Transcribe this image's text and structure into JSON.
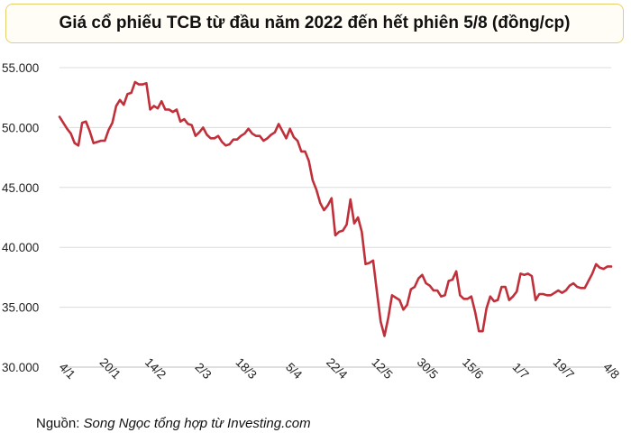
{
  "chart_data": {
    "type": "line",
    "title": "Giá cổ phiếu TCB từ đầu năm 2022 đến hết phiên 5/8 (đồng/cp)",
    "xlabel": "",
    "ylabel": "",
    "ylim": [
      30000,
      55000
    ],
    "y_ticks": [
      30000,
      35000,
      40000,
      45000,
      50000,
      55000
    ],
    "y_tick_labels": [
      "30.000",
      "35.000",
      "40.000",
      "45.000",
      "50.000",
      "55.000"
    ],
    "x_tick_labels": [
      "4/1",
      "20/1",
      "14/2",
      "2/3",
      "18/3",
      "5/4",
      "22/4",
      "12/5",
      "30/5",
      "15/6",
      "1/7",
      "19/7",
      "4/8"
    ],
    "x_tick_index": [
      0,
      12,
      24,
      36,
      48,
      60,
      72,
      84,
      96,
      108,
      120,
      132,
      144
    ],
    "grid": true,
    "line_color": "#c0303a",
    "series": [
      {
        "values": [
          50900,
          50400,
          49900,
          49500,
          48700,
          48500,
          50400,
          50500,
          49700,
          48700,
          48800,
          48900,
          48900,
          49800,
          50400,
          51800,
          52300,
          51900,
          52800,
          52900,
          53800,
          53600,
          53600,
          53700,
          51500,
          51800,
          51600,
          52200,
          51500,
          51500,
          51300,
          51500,
          50500,
          50700,
          50300,
          50200,
          49300,
          49600,
          50000,
          49400,
          49100,
          49100,
          49300,
          48800,
          48500,
          48600,
          49000,
          49000,
          49300,
          49500,
          49900,
          49500,
          49300,
          49300,
          48900,
          49100,
          49400,
          49600,
          50300,
          49700,
          49100,
          49900,
          49200,
          48900,
          48000,
          48000,
          47200,
          45600,
          44800,
          43700,
          43100,
          43500,
          44100,
          41000,
          41300,
          41400,
          41900,
          44000,
          42000,
          42500,
          41300,
          38600,
          38700,
          38900,
          36300,
          33800,
          32600,
          34100,
          36000,
          35800,
          35600,
          34800,
          35200,
          36500,
          36700,
          37400,
          37700,
          37000,
          36800,
          36400,
          36400,
          35900,
          36000,
          37200,
          37300,
          38000,
          36000,
          35700,
          35700,
          35900,
          34600,
          33000,
          33000,
          34900,
          35900,
          35500,
          35600,
          36700,
          36700,
          35600,
          35900,
          36300,
          37800,
          37700,
          37800,
          37600,
          35600,
          36100,
          36100,
          36000,
          36000,
          36200,
          36400,
          36200,
          36400,
          36800,
          37000,
          36700,
          36600,
          36600,
          37200,
          37800,
          38600,
          38300,
          38200,
          38400,
          38400
        ]
      }
    ]
  },
  "source": {
    "prefix": "Nguồn: ",
    "name": "Song Ngọc tổng hợp từ Investing.com"
  }
}
